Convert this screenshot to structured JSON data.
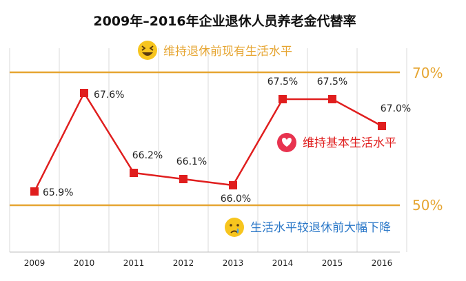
{
  "chart_data": {
    "type": "line",
    "title": "2009年–2016年企业退休人员养老金代替率",
    "xlabel": "",
    "ylabel": "",
    "categories": [
      "2009",
      "2010",
      "2011",
      "2012",
      "2013",
      "2014",
      "2015",
      "2016"
    ],
    "series": [
      {
        "values": [
          65.9,
          67.6,
          66.2,
          66.1,
          66.0,
          67.5,
          67.5,
          67.0
        ],
        "labels": [
          "65.9%",
          "67.6%",
          "66.2%",
          "66.1%",
          "66.0%",
          "67.5%",
          "67.5%",
          "67.0%"
        ],
        "color": "#e01e1e"
      }
    ],
    "reference_lines": [
      {
        "label": "70%",
        "color": "#e6a531"
      },
      {
        "label": "50%",
        "color": "#e6a531"
      }
    ],
    "annotations": {
      "top": {
        "text": "维持退休前现有生活水平",
        "color": "#e6a531",
        "icon": "laughing-emoji-icon"
      },
      "middle": {
        "text": "维持基本生活水平",
        "color": "#e01e1e",
        "icon": "heart-icon"
      },
      "bottom": {
        "text": "生活水平较退休前大幅下降",
        "color": "#2b78c8",
        "icon": "crying-emoji-icon"
      }
    },
    "grid": "vertical",
    "legend": "none"
  }
}
